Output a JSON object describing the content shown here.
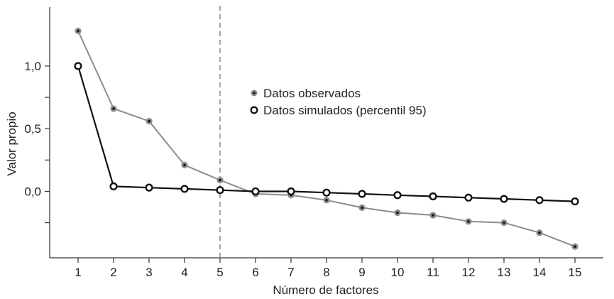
{
  "chart_data": {
    "type": "line",
    "x": [
      1,
      2,
      3,
      4,
      5,
      6,
      7,
      8,
      9,
      10,
      11,
      12,
      13,
      14,
      15
    ],
    "series": [
      {
        "name": "Datos observados",
        "color": "#8c8c8c",
        "marker": "filled-dot",
        "values": [
          1.28,
          0.66,
          0.56,
          0.21,
          0.09,
          -0.02,
          -0.03,
          -0.07,
          -0.13,
          -0.17,
          -0.19,
          -0.24,
          -0.25,
          -0.33,
          -0.44
        ]
      },
      {
        "name": "Datos simulados (percentil 95)",
        "color": "#111111",
        "marker": "open-circle",
        "values": [
          1.0,
          0.04,
          0.03,
          0.02,
          0.01,
          0.0,
          0.0,
          -0.01,
          -0.02,
          -0.03,
          -0.04,
          -0.05,
          -0.06,
          -0.07,
          -0.08
        ]
      }
    ],
    "xlabel": "Número de factores",
    "ylabel": "Valor propio",
    "x_ticks": [
      "1",
      "2",
      "3",
      "4",
      "5",
      "6",
      "7",
      "8",
      "9",
      "10",
      "11",
      "12",
      "13",
      "14",
      "15"
    ],
    "y_ticks": [
      {
        "value": 1.0,
        "label": "1,0"
      },
      {
        "value": 0.75,
        "label": ""
      },
      {
        "value": 0.5,
        "label": "0,5"
      },
      {
        "value": 0.25,
        "label": ""
      },
      {
        "value": 0.0,
        "label": "0,0"
      },
      {
        "value": -0.25,
        "label": ""
      }
    ],
    "xlim": [
      0.2,
      15.8
    ],
    "ylim": [
      -0.53,
      1.47
    ],
    "reference_line": {
      "x": 5,
      "style": "dashed"
    },
    "legend_position": "upper-center",
    "grid": false
  }
}
